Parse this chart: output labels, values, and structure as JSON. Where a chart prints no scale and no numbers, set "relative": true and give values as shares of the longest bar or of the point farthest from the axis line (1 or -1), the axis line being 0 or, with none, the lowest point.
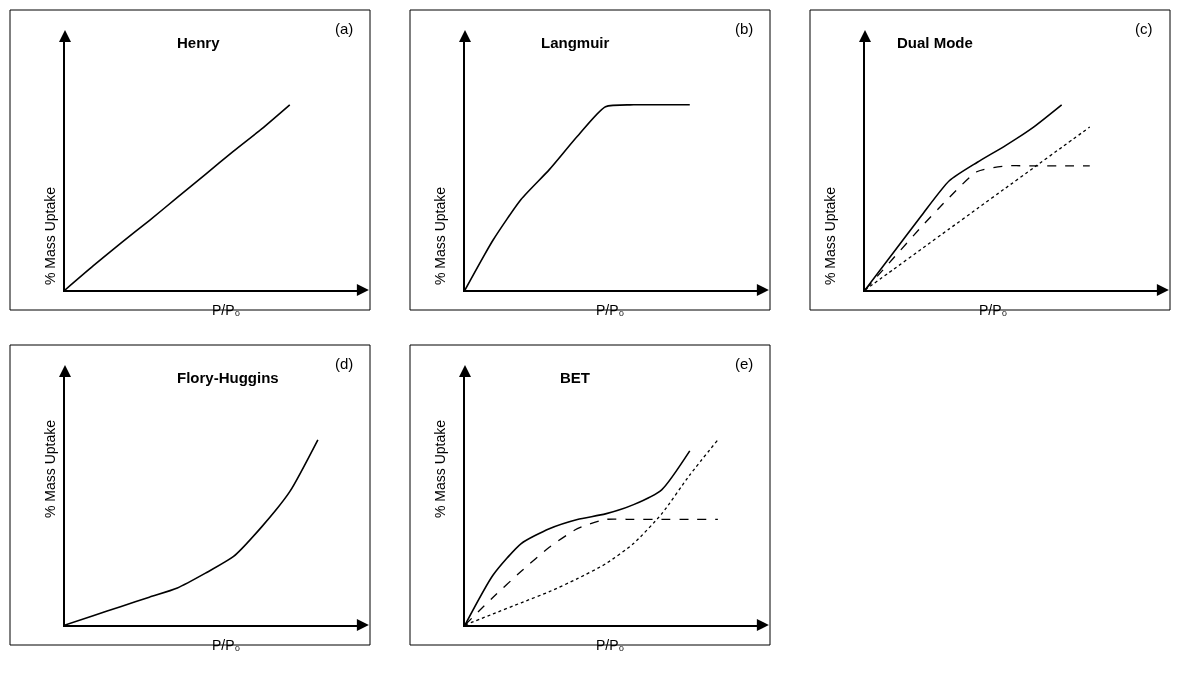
{
  "chart_data": [
    {
      "type": "line",
      "title": "Henry",
      "xlabel": "P/P₀",
      "ylabel": "% Mass Uptake",
      "annotations": [
        "(a)"
      ],
      "relative": true,
      "categories": [
        null,
        null,
        null,
        null,
        null,
        null,
        null,
        null,
        null,
        null,
        null
      ],
      "series": [
        {
          "color": "#000000",
          "line_style": "solid",
          "values": [
            0,
            0.13,
            0.255,
            0.375,
            0.5,
            0.625,
            0.75,
            0.87,
            1.0,
            null,
            null
          ]
        }
      ]
    },
    {
      "type": "line",
      "title": "Langmuir",
      "xlabel": "P/P₀",
      "ylabel": "% Mass Uptake",
      "annotations": [
        "(b)"
      ],
      "relative": true,
      "categories": [
        null,
        null,
        null,
        null,
        null,
        null,
        null,
        null,
        null,
        null,
        null
      ],
      "series": [
        {
          "color": "#000000",
          "line_style": "solid",
          "values": [
            0,
            0.27,
            0.49,
            0.65,
            0.83,
            0.99,
            1.0,
            1.0,
            1.0,
            null,
            null
          ]
        }
      ]
    },
    {
      "type": "line",
      "title": "Dual Mode",
      "xlabel": "P/P₀",
      "ylabel": "% Mass Uptake",
      "annotations": [
        "(c)"
      ],
      "relative": true,
      "categories": [
        null,
        null,
        null,
        null,
        null,
        null,
        null,
        null,
        null,
        null,
        null
      ],
      "series": [
        {
          "color": "#000000",
          "line_style": "solid",
          "values": [
            0,
            0.2,
            0.4,
            0.59,
            0.69,
            0.78,
            0.88,
            1.0,
            null,
            null,
            null
          ]
        },
        {
          "color": "#000000",
          "line_style": "dashed",
          "values": [
            0,
            0.17,
            0.34,
            0.5,
            0.64,
            0.67,
            0.67,
            0.67,
            0.67,
            null,
            null
          ]
        },
        {
          "color": "#000000",
          "line_style": "dotted",
          "values": [
            0,
            0.11,
            0.22,
            0.33,
            0.44,
            0.55,
            0.66,
            0.77,
            0.88,
            null,
            null
          ]
        }
      ]
    },
    {
      "type": "line",
      "title": "Flory-Huggins",
      "xlabel": "P/P₀",
      "ylabel": "% Mass Uptake",
      "annotations": [
        "(d)"
      ],
      "relative": true,
      "categories": [
        null,
        null,
        null,
        null,
        null,
        null,
        null,
        null,
        null,
        null,
        null
      ],
      "series": [
        {
          "color": "#000000",
          "line_style": "solid",
          "values": [
            0,
            0.05,
            0.1,
            0.15,
            0.2,
            0.28,
            0.37,
            0.53,
            0.72,
            1.0,
            null
          ]
        }
      ]
    },
    {
      "type": "line",
      "title": "BET",
      "xlabel": "P/P₀",
      "ylabel": "% Mass Uptake",
      "annotations": [
        "(e)"
      ],
      "relative": true,
      "categories": [
        null,
        null,
        null,
        null,
        null,
        null,
        null,
        null,
        null,
        null,
        null
      ],
      "series": [
        {
          "color": "#000000",
          "line_style": "solid",
          "values": [
            0,
            0.27,
            0.44,
            0.52,
            0.57,
            0.6,
            0.65,
            0.73,
            0.94,
            null,
            null
          ]
        },
        {
          "color": "#000000",
          "line_style": "dashed",
          "values": [
            0,
            0.15,
            0.29,
            0.42,
            0.52,
            0.57,
            0.57,
            0.57,
            0.57,
            0.57,
            null
          ]
        },
        {
          "color": "#000000",
          "line_style": "dotted",
          "values": [
            0,
            0.06,
            0.12,
            0.18,
            0.25,
            0.33,
            0.44,
            0.6,
            0.81,
            1.0,
            null
          ]
        }
      ]
    }
  ]
}
